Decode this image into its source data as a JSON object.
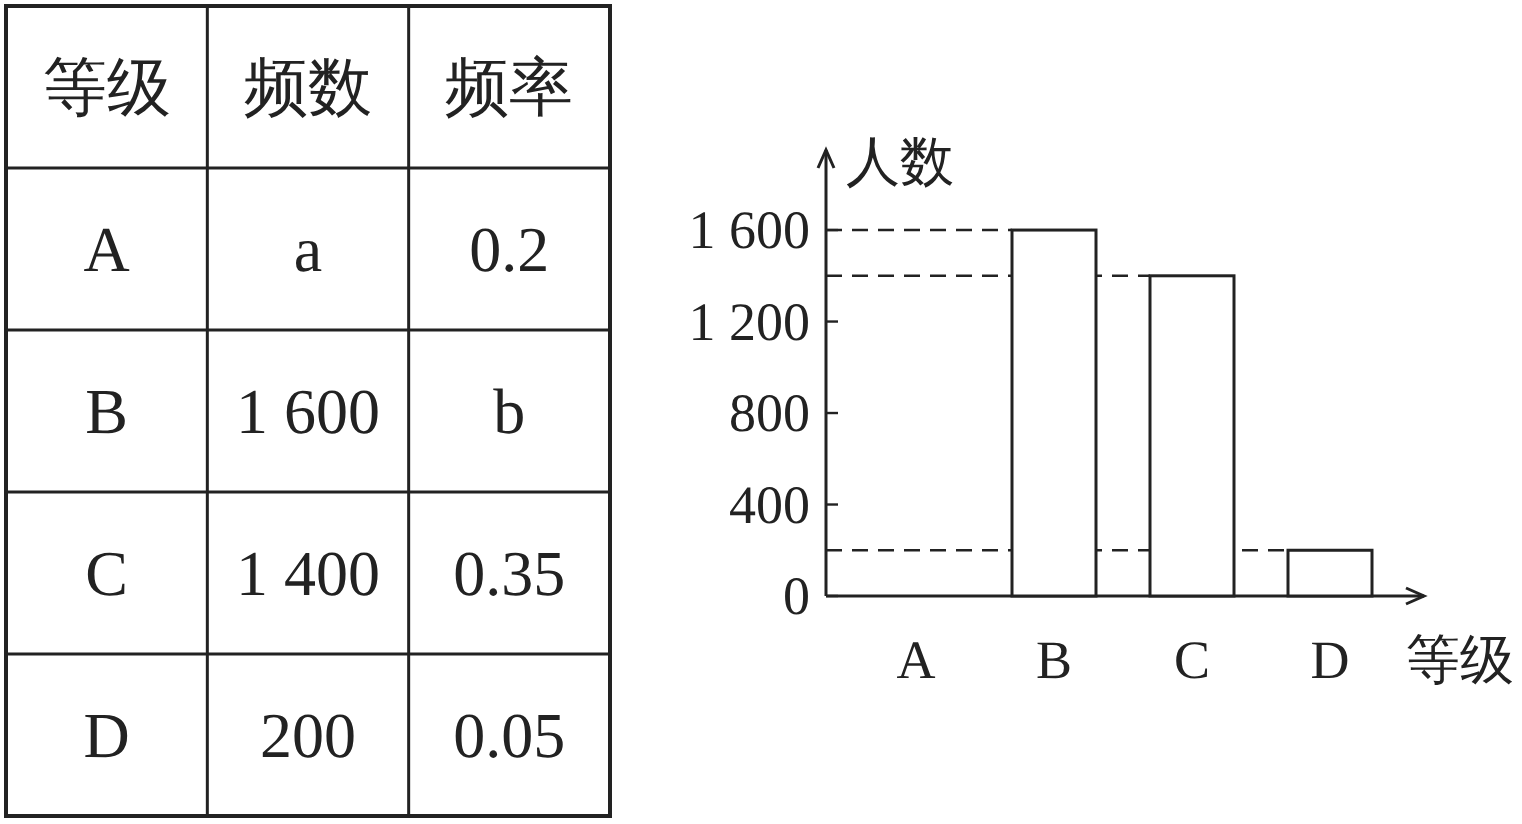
{
  "chart_data": [
    {
      "type": "other",
      "annotations": [
        "等级",
        "频数",
        "频率",
        "A",
        "a",
        "0.2",
        "B",
        "1 600",
        "b",
        "C",
        "1 400",
        "0.35",
        "D",
        "200",
        "0.05"
      ]
    },
    {
      "type": "bar",
      "categories": [
        "A",
        "B",
        "C",
        "D"
      ],
      "values": [
        null,
        1600,
        1400,
        200
      ],
      "color": "#ffffff",
      "ylabel": "人数",
      "xlabel": "等级",
      "ylim": [
        0,
        1950
      ],
      "yticks": [
        0,
        400,
        800,
        {
          "value": 1200,
          "label": "1 200"
        },
        {
          "value": 1600,
          "label": "1 600"
        }
      ],
      "ref_lines": [
        {
          "axis": "y",
          "value": 1600,
          "line_style": "dashed"
        },
        {
          "axis": "y",
          "value": 1400,
          "line_style": "dashed"
        },
        {
          "axis": "y",
          "value": 200,
          "line_style": "dashed"
        }
      ]
    }
  ]
}
